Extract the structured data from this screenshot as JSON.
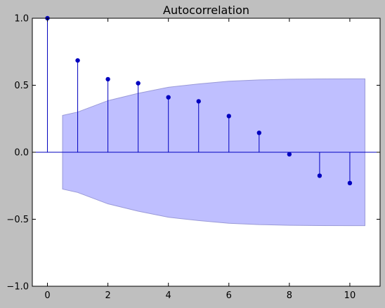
{
  "chart_data": {
    "type": "stem",
    "title": "Autocorrelation",
    "xlabel": "",
    "ylabel": "",
    "xlim": [
      -0.5,
      11
    ],
    "ylim": [
      -1.0,
      1.0
    ],
    "x_ticks": [
      0,
      2,
      4,
      6,
      8,
      10
    ],
    "x_tick_labels": [
      "0",
      "2",
      "4",
      "6",
      "8",
      "10"
    ],
    "y_ticks": [
      -1.0,
      -0.5,
      0.0,
      0.5,
      1.0
    ],
    "y_tick_labels": [
      "−1.0",
      "−0.5",
      "0.0",
      "0.5",
      "1.0"
    ],
    "grid": false,
    "lags": [
      0,
      1,
      2,
      3,
      4,
      5,
      6,
      7,
      8,
      9,
      10
    ],
    "values": [
      1.0,
      0.685,
      0.545,
      0.515,
      0.41,
      0.38,
      0.27,
      0.145,
      -0.015,
      -0.175,
      -0.23
    ],
    "confidence_band": {
      "x": [
        0.5,
        1,
        2,
        3,
        4,
        5,
        6,
        7,
        8,
        9,
        10,
        10.5
      ],
      "upper": [
        0.275,
        0.3,
        0.385,
        0.44,
        0.485,
        0.51,
        0.53,
        0.54,
        0.545,
        0.547,
        0.548,
        0.548
      ],
      "lower": [
        -0.275,
        -0.3,
        -0.385,
        -0.44,
        -0.485,
        -0.51,
        -0.53,
        -0.54,
        -0.545,
        -0.547,
        -0.548,
        -0.548
      ]
    },
    "colors": {
      "stem": "#0000bf",
      "marker": "#0000bf",
      "zero_line": "#0000bf",
      "band_fill": "#bfbfff",
      "band_edge": "#9a9ad8",
      "figure_bg": "#bfbfbf",
      "axes_bg": "#ffffff",
      "frame": "#000000"
    }
  }
}
